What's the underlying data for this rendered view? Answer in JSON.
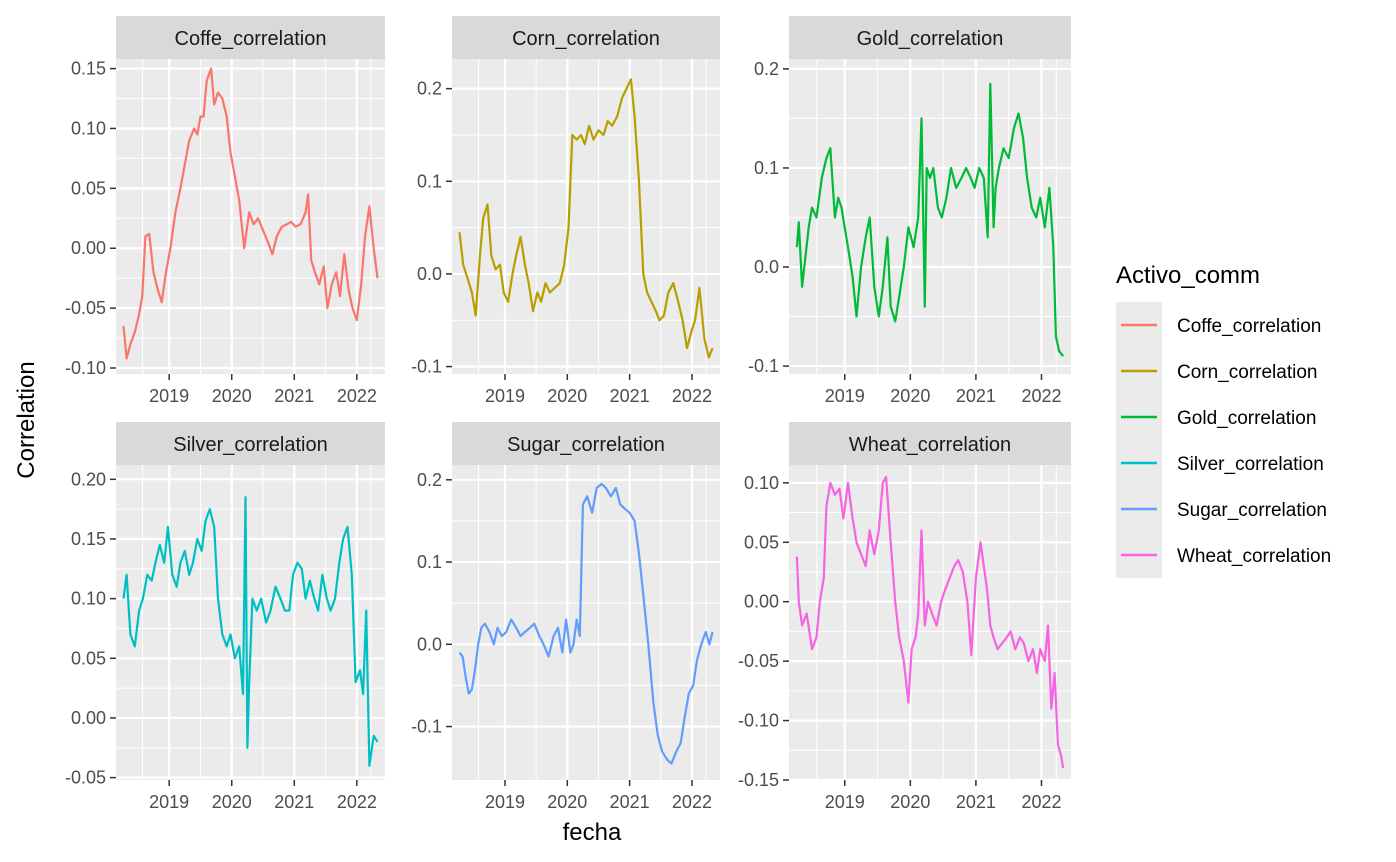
{
  "chart_data": {
    "type": "line",
    "facet_by": "Activo_comm",
    "facet_layout": "3 columns x 2 rows, free y scales, shared x",
    "xlabel": "fecha",
    "ylabel": "Correlation",
    "x_ticks": [
      "2019",
      "2020",
      "2021",
      "2022"
    ],
    "xlim": [
      2018.15,
      2022.45
    ],
    "grid": true,
    "legend": {
      "title": "Activo_comm",
      "position": "right",
      "entries": [
        "Coffe_correlation",
        "Corn_correlation",
        "Gold_correlation",
        "Silver_correlation",
        "Sugar_correlation",
        "Wheat_correlation"
      ]
    },
    "panels": [
      {
        "name": "Coffe_correlation",
        "color": "#F8766D",
        "ylim": [
          -0.105,
          0.158
        ],
        "y_ticks": [
          -0.1,
          -0.05,
          0.0,
          0.05,
          0.1,
          0.15
        ],
        "y_tick_labels": [
          "-0.10",
          "-0.05",
          "0.00",
          "0.05",
          "0.10",
          "0.15"
        ],
        "x": [
          2018.27,
          2018.32,
          2018.38,
          2018.45,
          2018.52,
          2018.57,
          2018.62,
          2018.68,
          2018.75,
          2018.82,
          2018.88,
          2018.95,
          2019.02,
          2019.1,
          2019.18,
          2019.25,
          2019.32,
          2019.4,
          2019.45,
          2019.5,
          2019.55,
          2019.6,
          2019.67,
          2019.72,
          2019.78,
          2019.85,
          2019.92,
          2019.98,
          2020.05,
          2020.12,
          2020.2,
          2020.28,
          2020.35,
          2020.42,
          2020.5,
          2020.58,
          2020.65,
          2020.72,
          2020.8,
          2020.88,
          2020.95,
          2021.02,
          2021.1,
          2021.18,
          2021.22,
          2021.27,
          2021.33,
          2021.4,
          2021.47,
          2021.53,
          2021.6,
          2021.67,
          2021.73,
          2021.8,
          2021.87,
          2021.93,
          2022.0,
          2022.07,
          2022.13,
          2022.2,
          2022.27,
          2022.33
        ],
        "y": [
          -0.065,
          -0.092,
          -0.08,
          -0.07,
          -0.055,
          -0.04,
          0.01,
          0.012,
          -0.02,
          -0.035,
          -0.045,
          -0.02,
          0.0,
          0.03,
          0.05,
          0.07,
          0.09,
          0.1,
          0.095,
          0.11,
          0.11,
          0.14,
          0.15,
          0.12,
          0.13,
          0.125,
          0.11,
          0.08,
          0.06,
          0.04,
          0.0,
          0.03,
          0.02,
          0.025,
          0.015,
          0.005,
          -0.005,
          0.01,
          0.018,
          0.02,
          0.022,
          0.018,
          0.02,
          0.03,
          0.045,
          -0.01,
          -0.02,
          -0.03,
          -0.015,
          -0.05,
          -0.03,
          -0.02,
          -0.04,
          -0.005,
          -0.035,
          -0.05,
          -0.06,
          -0.03,
          0.01,
          0.035,
          0.0,
          -0.025
        ]
      },
      {
        "name": "Corn_correlation",
        "color": "#B79F00",
        "ylim": [
          -0.108,
          0.232
        ],
        "y_ticks": [
          -0.1,
          0.0,
          0.1,
          0.2
        ],
        "y_tick_labels": [
          "-0.1",
          "0.0",
          "0.1",
          "0.2"
        ],
        "x": [
          2018.27,
          2018.33,
          2018.4,
          2018.47,
          2018.53,
          2018.6,
          2018.65,
          2018.72,
          2018.78,
          2018.85,
          2018.92,
          2018.98,
          2019.05,
          2019.12,
          2019.18,
          2019.25,
          2019.32,
          2019.38,
          2019.45,
          2019.52,
          2019.58,
          2019.65,
          2019.72,
          2019.8,
          2019.88,
          2019.95,
          2020.02,
          2020.08,
          2020.15,
          2020.22,
          2020.28,
          2020.35,
          2020.42,
          2020.5,
          2020.58,
          2020.65,
          2020.72,
          2020.8,
          2020.88,
          2020.95,
          2021.02,
          2021.08,
          2021.15,
          2021.22,
          2021.28,
          2021.35,
          2021.42,
          2021.48,
          2021.55,
          2021.62,
          2021.7,
          2021.78,
          2021.85,
          2021.92,
          2022.0,
          2022.05,
          2022.12,
          2022.2,
          2022.27,
          2022.33
        ],
        "y": [
          0.045,
          0.01,
          -0.005,
          -0.02,
          -0.045,
          0.02,
          0.06,
          0.075,
          0.02,
          0.005,
          0.01,
          -0.02,
          -0.03,
          0.0,
          0.02,
          0.04,
          0.01,
          -0.01,
          -0.04,
          -0.02,
          -0.03,
          -0.01,
          -0.02,
          -0.015,
          -0.01,
          0.01,
          0.05,
          0.15,
          0.145,
          0.15,
          0.14,
          0.16,
          0.145,
          0.155,
          0.15,
          0.165,
          0.16,
          0.17,
          0.19,
          0.2,
          0.21,
          0.17,
          0.1,
          0.0,
          -0.02,
          -0.03,
          -0.04,
          -0.05,
          -0.045,
          -0.02,
          -0.01,
          -0.03,
          -0.05,
          -0.08,
          -0.06,
          -0.05,
          -0.015,
          -0.07,
          -0.09,
          -0.08
        ]
      },
      {
        "name": "Gold_correlation",
        "color": "#00BA38",
        "ylim": [
          -0.108,
          0.21
        ],
        "y_ticks": [
          -0.1,
          0.0,
          0.1,
          0.2
        ],
        "y_tick_labels": [
          "-0.1",
          "0.0",
          "0.1",
          "0.2"
        ],
        "x": [
          2018.27,
          2018.3,
          2018.35,
          2018.4,
          2018.45,
          2018.5,
          2018.57,
          2018.65,
          2018.72,
          2018.78,
          2018.85,
          2018.9,
          2018.95,
          2019.0,
          2019.05,
          2019.12,
          2019.18,
          2019.25,
          2019.32,
          2019.38,
          2019.45,
          2019.52,
          2019.58,
          2019.65,
          2019.7,
          2019.77,
          2019.83,
          2019.9,
          2019.97,
          2020.05,
          2020.12,
          2020.17,
          2020.22,
          2020.25,
          2020.3,
          2020.35,
          2020.42,
          2020.48,
          2020.55,
          2020.62,
          2020.7,
          2020.78,
          2020.85,
          2020.92,
          2020.98,
          2021.05,
          2021.12,
          2021.18,
          2021.22,
          2021.27,
          2021.3,
          2021.35,
          2021.42,
          2021.5,
          2021.58,
          2021.65,
          2021.72,
          2021.78,
          2021.85,
          2021.92,
          2021.98,
          2022.05,
          2022.12,
          2022.18,
          2022.22,
          2022.27,
          2022.33
        ],
        "y": [
          0.02,
          0.045,
          -0.02,
          0.01,
          0.04,
          0.06,
          0.05,
          0.09,
          0.11,
          0.12,
          0.05,
          0.07,
          0.06,
          0.04,
          0.02,
          -0.01,
          -0.05,
          0.0,
          0.03,
          0.05,
          -0.02,
          -0.05,
          -0.02,
          0.03,
          -0.04,
          -0.055,
          -0.03,
          0.0,
          0.04,
          0.02,
          0.05,
          0.15,
          -0.04,
          0.1,
          0.09,
          0.1,
          0.06,
          0.05,
          0.07,
          0.1,
          0.08,
          0.09,
          0.1,
          0.09,
          0.08,
          0.1,
          0.09,
          0.03,
          0.185,
          0.04,
          0.08,
          0.1,
          0.12,
          0.11,
          0.14,
          0.155,
          0.13,
          0.09,
          0.06,
          0.05,
          0.07,
          0.04,
          0.08,
          0.02,
          -0.07,
          -0.085,
          -0.09
        ]
      },
      {
        "name": "Silver_correlation",
        "color": "#00BFC4",
        "ylim": [
          -0.052,
          0.212
        ],
        "y_ticks": [
          -0.05,
          0.0,
          0.05,
          0.1,
          0.15,
          0.2
        ],
        "y_tick_labels": [
          "-0.05",
          "0.00",
          "0.05",
          "0.10",
          "0.15",
          "0.20"
        ],
        "x": [
          2018.27,
          2018.32,
          2018.38,
          2018.45,
          2018.52,
          2018.58,
          2018.65,
          2018.72,
          2018.78,
          2018.85,
          2018.92,
          2018.98,
          2019.05,
          2019.12,
          2019.18,
          2019.25,
          2019.32,
          2019.38,
          2019.45,
          2019.52,
          2019.58,
          2019.65,
          2019.72,
          2019.78,
          2019.85,
          2019.92,
          2019.98,
          2020.05,
          2020.12,
          2020.18,
          2020.22,
          2020.25,
          2020.28,
          2020.33,
          2020.4,
          2020.47,
          2020.55,
          2020.62,
          2020.7,
          2020.78,
          2020.85,
          2020.92,
          2020.98,
          2021.05,
          2021.12,
          2021.18,
          2021.25,
          2021.32,
          2021.38,
          2021.45,
          2021.52,
          2021.58,
          2021.65,
          2021.72,
          2021.78,
          2021.85,
          2021.92,
          2021.98,
          2022.05,
          2022.1,
          2022.15,
          2022.2,
          2022.27,
          2022.33
        ],
        "y": [
          0.1,
          0.12,
          0.07,
          0.06,
          0.09,
          0.1,
          0.12,
          0.115,
          0.13,
          0.145,
          0.13,
          0.16,
          0.12,
          0.11,
          0.13,
          0.14,
          0.12,
          0.13,
          0.15,
          0.14,
          0.165,
          0.175,
          0.16,
          0.1,
          0.07,
          0.06,
          0.07,
          0.05,
          0.06,
          0.02,
          0.185,
          -0.025,
          0.03,
          0.1,
          0.09,
          0.1,
          0.08,
          0.09,
          0.11,
          0.1,
          0.09,
          0.09,
          0.12,
          0.13,
          0.125,
          0.1,
          0.115,
          0.1,
          0.09,
          0.12,
          0.1,
          0.09,
          0.1,
          0.13,
          0.15,
          0.16,
          0.12,
          0.03,
          0.04,
          0.02,
          0.09,
          -0.04,
          -0.015,
          -0.02
        ]
      },
      {
        "name": "Sugar_correlation",
        "color": "#619CFF",
        "ylim": [
          -0.165,
          0.218
        ],
        "y_ticks": [
          -0.1,
          0.0,
          0.1,
          0.2
        ],
        "y_tick_labels": [
          "-0.1",
          "0.0",
          "0.1",
          "0.2"
        ],
        "x": [
          2018.27,
          2018.32,
          2018.37,
          2018.42,
          2018.47,
          2018.52,
          2018.57,
          2018.62,
          2018.68,
          2018.75,
          2018.82,
          2018.88,
          2018.95,
          2019.02,
          2019.1,
          2019.18,
          2019.25,
          2019.32,
          2019.4,
          2019.47,
          2019.55,
          2019.62,
          2019.7,
          2019.78,
          2019.85,
          2019.92,
          2019.98,
          2020.05,
          2020.1,
          2020.15,
          2020.2,
          2020.25,
          2020.32,
          2020.4,
          2020.47,
          2020.55,
          2020.62,
          2020.7,
          2020.78,
          2020.85,
          2020.92,
          2021.0,
          2021.08,
          2021.15,
          2021.22,
          2021.3,
          2021.38,
          2021.45,
          2021.52,
          2021.6,
          2021.67,
          2021.75,
          2021.82,
          2021.88,
          2021.95,
          2022.02,
          2022.08,
          2022.15,
          2022.22,
          2022.28,
          2022.33
        ],
        "y": [
          -0.01,
          -0.015,
          -0.04,
          -0.06,
          -0.055,
          -0.03,
          0.0,
          0.02,
          0.025,
          0.015,
          0.0,
          0.02,
          0.01,
          0.015,
          0.03,
          0.02,
          0.01,
          0.015,
          0.02,
          0.025,
          0.01,
          0.0,
          -0.015,
          0.01,
          0.02,
          -0.01,
          0.03,
          -0.01,
          0.0,
          0.03,
          0.01,
          0.17,
          0.18,
          0.16,
          0.19,
          0.195,
          0.19,
          0.18,
          0.19,
          0.17,
          0.165,
          0.16,
          0.15,
          0.11,
          0.06,
          0.0,
          -0.07,
          -0.11,
          -0.13,
          -0.14,
          -0.145,
          -0.13,
          -0.12,
          -0.09,
          -0.06,
          -0.05,
          -0.02,
          0.0,
          0.015,
          0.0,
          0.015
        ]
      },
      {
        "name": "Wheat_correlation",
        "color": "#F564E3",
        "ylim": [
          -0.15,
          0.115
        ],
        "y_ticks": [
          -0.15,
          -0.1,
          -0.05,
          0.0,
          0.05,
          0.1
        ],
        "y_tick_labels": [
          "-0.15",
          "-0.10",
          "-0.05",
          "0.00",
          "0.05",
          "0.10"
        ],
        "x": [
          2018.27,
          2018.3,
          2018.35,
          2018.42,
          2018.5,
          2018.57,
          2018.62,
          2018.68,
          2018.72,
          2018.78,
          2018.85,
          2018.92,
          2018.98,
          2019.05,
          2019.12,
          2019.18,
          2019.25,
          2019.32,
          2019.38,
          2019.45,
          2019.52,
          2019.58,
          2019.63,
          2019.7,
          2019.77,
          2019.83,
          2019.9,
          2019.97,
          2020.02,
          2020.08,
          2020.12,
          2020.17,
          2020.22,
          2020.27,
          2020.33,
          2020.4,
          2020.47,
          2020.53,
          2020.6,
          2020.67,
          2020.73,
          2020.8,
          2020.87,
          2020.93,
          2021.0,
          2021.07,
          2021.12,
          2021.17,
          2021.22,
          2021.27,
          2021.33,
          2021.4,
          2021.47,
          2021.53,
          2021.6,
          2021.67,
          2021.73,
          2021.8,
          2021.87,
          2021.93,
          2021.98,
          2022.05,
          2022.1,
          2022.15,
          2022.2,
          2022.25,
          2022.3,
          2022.33
        ],
        "y": [
          0.038,
          0.0,
          -0.02,
          -0.01,
          -0.04,
          -0.03,
          0.0,
          0.02,
          0.08,
          0.1,
          0.09,
          0.095,
          0.07,
          0.1,
          0.07,
          0.05,
          0.04,
          0.03,
          0.06,
          0.04,
          0.06,
          0.1,
          0.105,
          0.05,
          0.0,
          -0.03,
          -0.05,
          -0.085,
          -0.04,
          -0.03,
          -0.01,
          0.06,
          -0.02,
          0.0,
          -0.01,
          -0.02,
          0.0,
          0.01,
          0.02,
          0.03,
          0.035,
          0.025,
          0.0,
          -0.045,
          0.02,
          0.05,
          0.03,
          0.01,
          -0.02,
          -0.03,
          -0.04,
          -0.035,
          -0.03,
          -0.025,
          -0.04,
          -0.03,
          -0.035,
          -0.05,
          -0.04,
          -0.06,
          -0.04,
          -0.05,
          -0.02,
          -0.09,
          -0.06,
          -0.12,
          -0.13,
          -0.14
        ]
      }
    ]
  }
}
